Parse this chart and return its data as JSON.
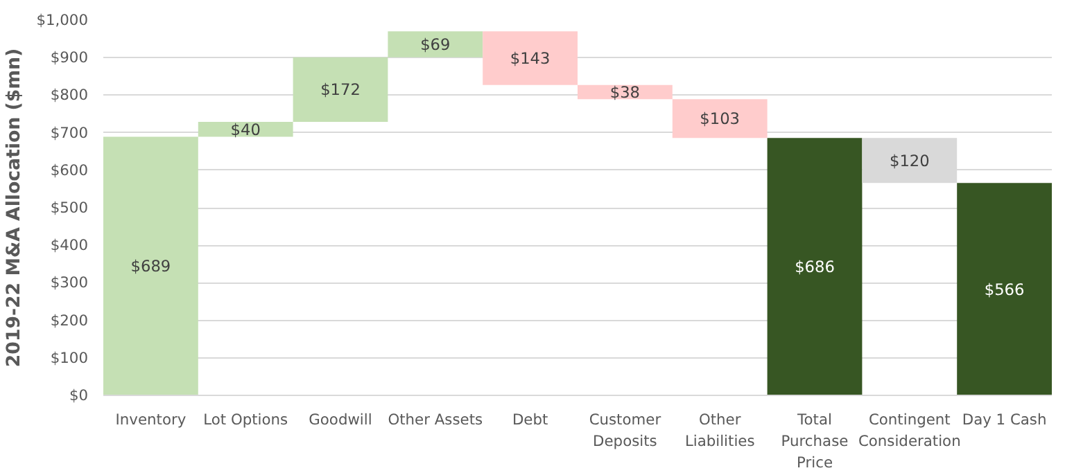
{
  "chart_data": {
    "type": "bar",
    "ylabel": "2019-22 M&A Allocation ($mn)",
    "categories": [
      "Inventory",
      "Lot Options",
      "Goodwill",
      "Other Assets",
      "Debt",
      "Customer Deposits",
      "Other Liabilities",
      "Total Purchase Price",
      "Contingent Consideration",
      "Day 1 Cash"
    ],
    "values": [
      689,
      40,
      172,
      69,
      143,
      38,
      103,
      686,
      120,
      566
    ],
    "base": [
      0,
      689,
      729,
      901,
      827,
      789,
      686,
      0,
      566,
      0
    ],
    "colors": [
      "#c5e0b4",
      "#c5e0b4",
      "#c5e0b4",
      "#c5e0b4",
      "#ffcccc",
      "#ffcccc",
      "#ffcccc",
      "#375623",
      "#d9d9d9",
      "#375623"
    ],
    "value_labels": [
      "$689",
      "$40",
      "$172",
      "$69",
      "$143",
      "$38",
      "$103",
      "$686",
      "$120",
      "$566"
    ],
    "ylim": [
      0,
      1000
    ],
    "yticks": [
      {
        "value": 0,
        "label": "$0"
      },
      {
        "value": 100,
        "label": "$100"
      },
      {
        "value": 200,
        "label": "$200"
      },
      {
        "value": 300,
        "label": "$300"
      },
      {
        "value": 400,
        "label": "$400"
      },
      {
        "value": 500,
        "label": "$500"
      },
      {
        "value": 600,
        "label": "$600"
      },
      {
        "value": 700,
        "label": "$700"
      },
      {
        "value": 800,
        "label": "$800"
      },
      {
        "value": 900,
        "label": "$900"
      },
      {
        "value": 1000,
        "label": "$1,000"
      }
    ],
    "grid": "y"
  }
}
